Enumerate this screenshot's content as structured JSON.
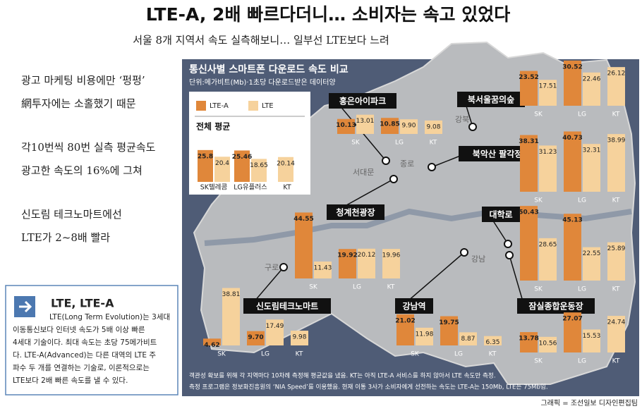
{
  "header": {
    "title": "LTE-A, 2배 빠르다더니… 소비자는 속고 있었다",
    "subtitle": "서울 8개 지역서 속도 실측해보니… 일부선 LTE보다 느려"
  },
  "side_points": [
    [
      "광고 마케팅 비용에만 ‘펑펑’",
      "網투자에는 소홀했기 때문"
    ],
    [
      "각10번씩 80번 실측 평균속도",
      "광고한 속도의 16%에 그쳐"
    ],
    [
      "신도림 테크노마트에선",
      "LTE가 2~8배 빨라"
    ]
  ],
  "info_box": {
    "title": "LTE, LTE-A",
    "lines": [
      "LTE(Long Term Evolution)는 3세대",
      "이동통신보다 인터넷 속도가 5배 이상 빠른",
      "4세대 기술이다. 최대 속도는 초당 75메가비트",
      "다. LTE-A(Advanced)는 다른 대역의 LTE 주",
      "파수 두 개를 연결하는 기술로, 이론적으로는",
      "LTE보다 2배 빠른 속도를 낼 수 있다."
    ]
  },
  "chart": {
    "title": "통신사별 스마트폰 다운로드 속도 비교",
    "unit": "단위:메가비트(Mb)·1초당 다운로드받은 데이터양",
    "legend": {
      "lte_a": "LTE-A",
      "lte": "LTE"
    },
    "colors": {
      "lte_a": "#e0873a",
      "lte": "#f6d29c"
    },
    "average": {
      "title": "전체 평균",
      "carriers": [
        "SK텔레콤",
        "LG유플러스",
        "KT"
      ],
      "lte_a": [
        25.8,
        25.46,
        null
      ],
      "lte": [
        20.4,
        18.65,
        20.14
      ]
    },
    "carriers": [
      "SK",
      "LG",
      "KT"
    ],
    "locations": [
      {
        "name": "홍은아이파크",
        "lte_a": [
          10.13,
          10.85,
          null
        ],
        "lte": [
          13.01,
          9.9,
          9.08
        ],
        "lte_labels": [
          "13.01",
          "9.90",
          "9.08"
        ]
      },
      {
        "name": "북서울꿈의숲",
        "lte_a": [
          23.52,
          30.52,
          null
        ],
        "lte": [
          17.51,
          22.46,
          26.12
        ]
      },
      {
        "name": "북악산 팔각정",
        "lte_a": [
          38.31,
          40.73,
          null
        ],
        "lte": [
          31.23,
          32.31,
          38.99
        ]
      },
      {
        "name": "청계천광장",
        "lte_a": [
          44.55,
          19.92,
          null
        ],
        "lte": [
          11.43,
          20.12,
          19.96
        ]
      },
      {
        "name": "대학로",
        "lte_a": [
          50.43,
          45.13,
          null
        ],
        "lte": [
          28.65,
          22.55,
          25.89
        ]
      },
      {
        "name": "신도림테크노마트",
        "lte_a": [
          4.62,
          9.7,
          null
        ],
        "lte": [
          38.81,
          17.49,
          9.98
        ],
        "lte_a_labels": [
          "4.62",
          "9.70",
          null
        ]
      },
      {
        "name": "강남역",
        "lte_a": [
          21.02,
          19.75,
          null
        ],
        "lte": [
          11.98,
          8.87,
          6.35
        ]
      },
      {
        "name": "잠실종합운동장",
        "lte_a": [
          13.78,
          27.07,
          null
        ],
        "lte": [
          10.56,
          15.53,
          24.74
        ]
      }
    ],
    "districts": [
      "강북",
      "서대문",
      "종로",
      "구로",
      "강남"
    ],
    "notes": [
      "객관성 확보를 위해 각 지역마다 10차례 측정해 평균값을 냈음. KT는 아직 LTE-A 서비스를 하지 않아서 LTE 속도만 측정.",
      "측정 프로그램은 정보화진흥원의 ‘NIA Speed’를 이용했음. 현재 이통 3사가 소비자에게 선전하는 속도는 LTE-A는 150Mb, LTE는 75Mb임."
    ]
  },
  "credit": "그래픽 = 조선일보 디자인편집팀"
}
